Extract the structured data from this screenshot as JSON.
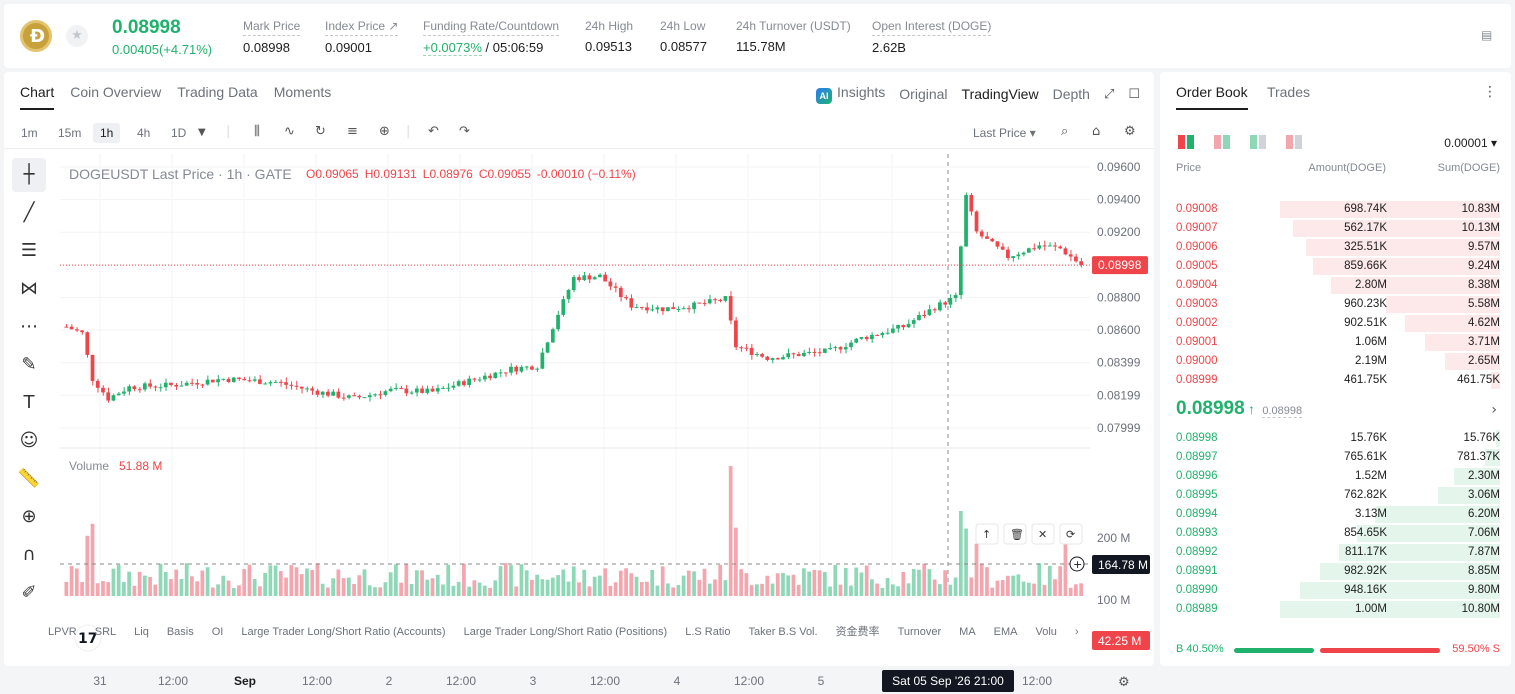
{
  "header": {
    "last_price": "0.08998",
    "change": "0.00405(+4.71%)",
    "stats": [
      {
        "label": "Mark Price",
        "value": "0.08998"
      },
      {
        "label": "Index Price ↗",
        "value": "0.09001"
      },
      {
        "label": "Funding Rate/Countdown",
        "rate": "+0.0073%",
        "countdown": " / 05:06:59"
      },
      {
        "label": "24h High",
        "value": "0.09513"
      },
      {
        "label": "24h Low",
        "value": "0.08577"
      },
      {
        "label": "24h Turnover (USDT)",
        "value": "115.78M"
      },
      {
        "label": "Open Interest (DOGE)",
        "value": "2.62B"
      }
    ]
  },
  "chart_tabs": [
    "Chart",
    "Coin Overview",
    "Trading Data",
    "Moments"
  ],
  "view_tabs": {
    "insights": "Insights",
    "original": "Original",
    "tradingview": "TradingView",
    "depth": "Depth",
    "ai_badge": "AI"
  },
  "timeframes": [
    "1m",
    "15m",
    "1h",
    "4h",
    "1D"
  ],
  "price_type": "Last Price",
  "legend": {
    "symbol": "DOGEUSDT Last Price · 1h · GATE",
    "o": "O0.09065",
    "h": "H0.09131",
    "l": "L0.08976",
    "c": "C0.09055",
    "chg": "-0.00010 (−0.11%)"
  },
  "volume_legend": {
    "label": "Volume",
    "value": "51.88 M"
  },
  "price_axis": [
    "0.09600",
    "0.09400",
    "0.09200",
    "0.08800",
    "0.08600",
    "0.08399",
    "0.08199",
    "0.07999"
  ],
  "volume_axis": [
    "200 M",
    "100 M"
  ],
  "current_price_tag": "0.08998",
  "crosshair_volume_tag": "164.78 M",
  "current_volume_tag": "42.25 M",
  "time_axis": [
    "31",
    "12:00",
    "Sep",
    "12:00",
    "2",
    "12:00",
    "3",
    "12:00",
    "4",
    "12:00",
    "5",
    "12:00"
  ],
  "crosshair_time": "Sat 05 Sep '26   21:00",
  "indicators": [
    "LPVR",
    "SRL",
    "Liq",
    "Basis",
    "OI",
    "Large Trader Long/Short Ratio (Accounts)",
    "Large Trader Long/Short Ratio (Positions)",
    "L.S Ratio",
    "Taker B.S Vol.",
    "资金费率",
    "Turnover",
    "MA",
    "EMA",
    "Volu"
  ],
  "orderbook": {
    "tabs": [
      "Order Book",
      "Trades"
    ],
    "precision": "0.00001",
    "headers": {
      "price": "Price",
      "amount": "Amount(DOGE)",
      "sum": "Sum(DOGE)"
    },
    "asks": [
      {
        "p": "0.09008",
        "a": "698.74K",
        "s": "10.83M",
        "depth": 1.0
      },
      {
        "p": "0.09007",
        "a": "562.17K",
        "s": "10.13M",
        "depth": 0.94
      },
      {
        "p": "0.09006",
        "a": "325.51K",
        "s": "9.57M",
        "depth": 0.88
      },
      {
        "p": "0.09005",
        "a": "859.66K",
        "s": "9.24M",
        "depth": 0.85
      },
      {
        "p": "0.09004",
        "a": "2.80M",
        "s": "8.38M",
        "depth": 0.77
      },
      {
        "p": "0.09003",
        "a": "960.23K",
        "s": "5.58M",
        "depth": 0.52
      },
      {
        "p": "0.09002",
        "a": "902.51K",
        "s": "4.62M",
        "depth": 0.43
      },
      {
        "p": "0.09001",
        "a": "1.06M",
        "s": "3.71M",
        "depth": 0.34
      },
      {
        "p": "0.09000",
        "a": "2.19M",
        "s": "2.65M",
        "depth": 0.25
      },
      {
        "p": "0.08999",
        "a": "461.75K",
        "s": "461.75K",
        "depth": 0.04
      }
    ],
    "mid_price": "0.08998",
    "mid_arrow": "↑",
    "mark_price": "0.08998",
    "bids": [
      {
        "p": "0.08998",
        "a": "15.76K",
        "s": "15.76K",
        "depth": 0.01
      },
      {
        "p": "0.08997",
        "a": "765.61K",
        "s": "781.37K",
        "depth": 0.07
      },
      {
        "p": "0.08996",
        "a": "1.52M",
        "s": "2.30M",
        "depth": 0.21
      },
      {
        "p": "0.08995",
        "a": "762.82K",
        "s": "3.06M",
        "depth": 0.28
      },
      {
        "p": "0.08994",
        "a": "3.13M",
        "s": "6.20M",
        "depth": 0.57
      },
      {
        "p": "0.08993",
        "a": "854.65K",
        "s": "7.06M",
        "depth": 0.65
      },
      {
        "p": "0.08992",
        "a": "811.17K",
        "s": "7.87M",
        "depth": 0.73
      },
      {
        "p": "0.08991",
        "a": "982.92K",
        "s": "8.85M",
        "depth": 0.82
      },
      {
        "p": "0.08990",
        "a": "948.16K",
        "s": "9.80M",
        "depth": 0.91
      },
      {
        "p": "0.08989",
        "a": "1.00M",
        "s": "10.80M",
        "depth": 1.0
      }
    ],
    "buy_ratio": "B 40.50%",
    "sell_ratio": "59.50% S",
    "buy_fraction": 0.405
  },
  "colors": {
    "up": "#20b26c",
    "down": "#ef454a",
    "up_vol": "#8fd8b7",
    "down_vol": "#f4a6ae"
  }
}
